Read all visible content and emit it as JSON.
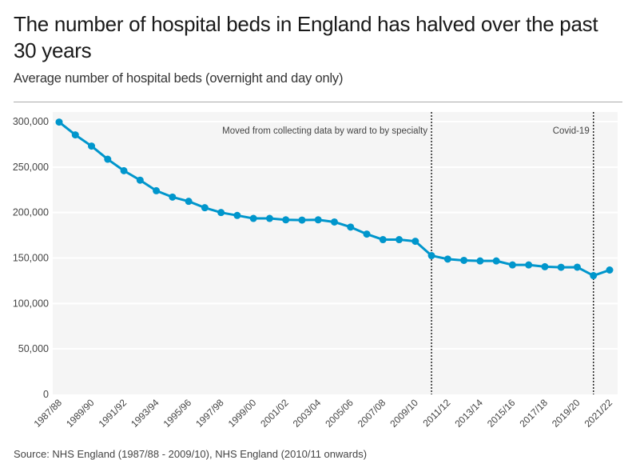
{
  "title": "The number of hospital beds in England has halved over the past 30 years",
  "subtitle": "Average number of hospital beds (overnight and day only)",
  "source": "Source: NHS England (1987/88 - 2009/10), NHS England (2010/11 onwards)",
  "chart_data": {
    "type": "line",
    "title": "The number of hospital beds in England has halved over the past 30 years",
    "subtitle": "Average number of hospital beds (overnight and day only)",
    "xlabel": "",
    "ylabel": "",
    "ylim": [
      0,
      300000
    ],
    "grid": true,
    "y_ticks": [
      "0",
      "50,000",
      "100,000",
      "150,000",
      "200,000",
      "250,000",
      "300,000"
    ],
    "y_tick_values": [
      0,
      50000,
      100000,
      150000,
      200000,
      250000,
      300000
    ],
    "categories": [
      "1987/88",
      "1988/89",
      "1989/90",
      "1990/91",
      "1991/92",
      "1992/93",
      "1993/94",
      "1994/95",
      "1995/96",
      "1996/97",
      "1997/98",
      "1998/99",
      "1999/00",
      "2000/01",
      "2001/02",
      "2002/03",
      "2003/04",
      "2004/05",
      "2005/06",
      "2006/07",
      "2007/08",
      "2008/09",
      "2009/10",
      "2010/11",
      "2011/12",
      "2012/13",
      "2013/14",
      "2014/15",
      "2015/16",
      "2016/17",
      "2017/18",
      "2018/19",
      "2019/20",
      "2020/21",
      "2021/22"
    ],
    "x_tick_labels": [
      "1987/88",
      "1989/90",
      "1991/92",
      "1993/94",
      "1995/96",
      "1997/98",
      "1999/00",
      "2001/02",
      "2003/04",
      "2005/06",
      "2007/08",
      "2009/10",
      "2011/12",
      "2013/14",
      "2015/16",
      "2017/18",
      "2019/20",
      "2021/22"
    ],
    "values": [
      299500,
      285400,
      273100,
      258600,
      246000,
      235600,
      224000,
      217000,
      212300,
      205300,
      200000,
      196800,
      193500,
      193500,
      192000,
      191700,
      192000,
      189600,
      184000,
      176300,
      170200,
      170200,
      168400,
      152600,
      148800,
      147400,
      146800,
      146800,
      142400,
      142400,
      140400,
      139800,
      139900,
      130600,
      136800
    ],
    "color": "#0096cc",
    "annotations": [
      {
        "category": "2010/11",
        "text": "Moved from collecting data by ward to by specialty"
      },
      {
        "category": "2020/21",
        "text": "Covid-19"
      }
    ]
  }
}
